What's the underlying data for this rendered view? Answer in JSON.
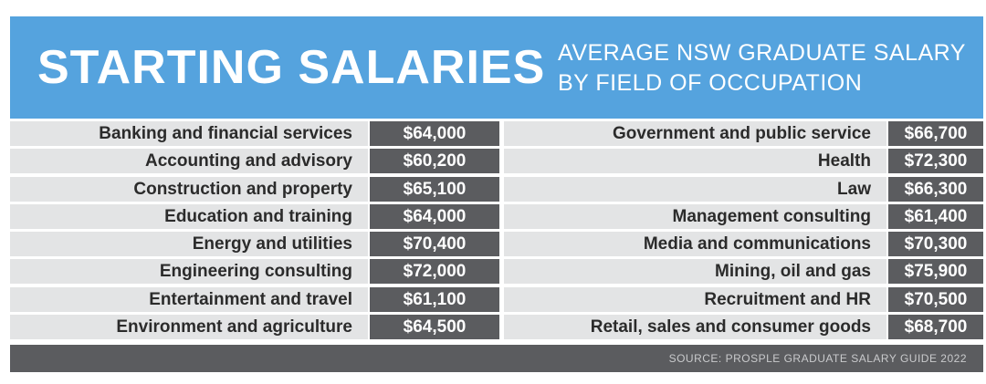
{
  "header": {
    "title": "STARTING SALARIES",
    "subtitle_line1": "AVERAGE NSW GRADUATE SALARY",
    "subtitle_line2": "BY FIELD OF OCCUPATION"
  },
  "footer": {
    "source": "SOURCE: PROSPLE GRADUATE SALARY GUIDE 2022"
  },
  "colors": {
    "header_bg": "#55a3de",
    "value_bg": "#5b5c5f",
    "label_bg": "#e3e4e5"
  },
  "chart_data": {
    "type": "table",
    "title": "STARTING SALARIES",
    "subtitle": "AVERAGE NSW GRADUATE SALARY BY FIELD OF OCCUPATION",
    "left": [
      {
        "field": "Banking and financial services",
        "salary": "$64,000"
      },
      {
        "field": "Accounting and advisory",
        "salary": "$60,200"
      },
      {
        "field": "Construction and property",
        "salary": "$65,100"
      },
      {
        "field": "Education and training",
        "salary": "$64,000"
      },
      {
        "field": "Energy and utilities",
        "salary": "$70,400"
      },
      {
        "field": "Engineering consulting",
        "salary": "$72,000"
      },
      {
        "field": "Entertainment and travel",
        "salary": "$61,100"
      },
      {
        "field": "Environment and agriculture",
        "salary": "$64,500"
      }
    ],
    "right": [
      {
        "field": "Government and public service",
        "salary": "$66,700"
      },
      {
        "field": "Health",
        "salary": "$72,300"
      },
      {
        "field": "Law",
        "salary": "$66,300"
      },
      {
        "field": "Management consulting",
        "salary": "$61,400"
      },
      {
        "field": "Media and communications",
        "salary": "$70,300"
      },
      {
        "field": "Mining, oil and gas",
        "salary": "$75,900"
      },
      {
        "field": "Recruitment and HR",
        "salary": "$70,500"
      },
      {
        "field": "Retail, sales and consumer goods",
        "salary": "$68,700"
      }
    ]
  }
}
